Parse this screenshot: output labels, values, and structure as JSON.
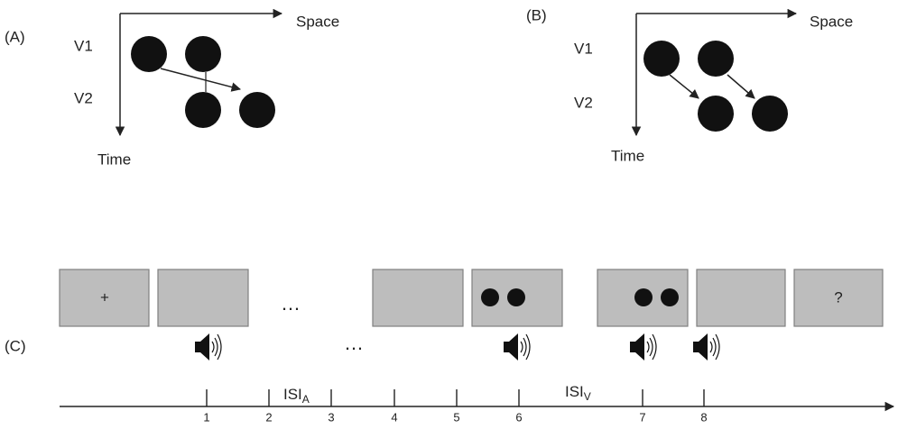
{
  "panel_a": {
    "label": "(A)",
    "x_axis": "Space",
    "rows": [
      "V1",
      "V2"
    ],
    "y_axis": "Time"
  },
  "panel_b": {
    "label": "(B)",
    "x_axis": "Space",
    "rows": [
      "V1",
      "V2"
    ],
    "y_axis": "Time"
  },
  "panel_c": {
    "label": "(C)",
    "fixation": "+",
    "screen_ellipsis": "…",
    "question": "?",
    "sound_ellipsis": "…",
    "isi_a": {
      "text": "ISI",
      "sub": "A"
    },
    "isi_v": {
      "text": "ISI",
      "sub": "V"
    },
    "ticks": [
      1,
      2,
      3,
      4,
      5,
      6,
      7,
      8
    ]
  }
}
